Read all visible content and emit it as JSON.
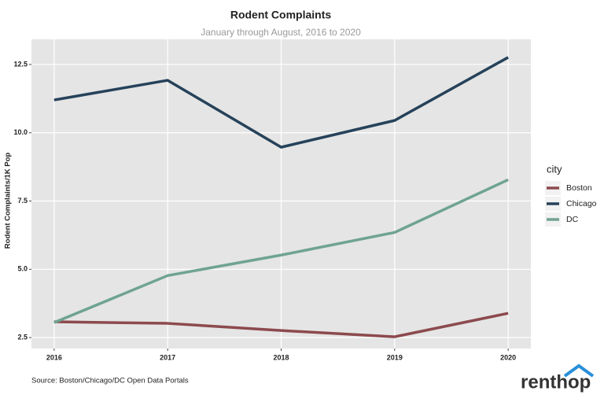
{
  "chart_data": {
    "type": "line",
    "title": "Rodent Complaints",
    "subtitle": "January through August, 2016 to 2020",
    "y_label": "Rodent Complaints/1K Pop",
    "x": [
      2016,
      2017,
      2018,
      2019,
      2020
    ],
    "xlim": [
      2015.8,
      2020.2
    ],
    "xticks": [
      2016,
      2017,
      2018,
      2019,
      2020
    ],
    "ylim": [
      2.1,
      13.42
    ],
    "yticks": [
      2.5,
      {
        "value": 5,
        "label": "5.0"
      },
      7.5,
      {
        "value": 10,
        "label": "10.0"
      },
      12.5
    ],
    "grid": true,
    "legend_title": "city",
    "legend_position": "right",
    "series": [
      {
        "name": "Boston",
        "color": "#8c4a4e",
        "values": [
          3.08,
          3.02,
          2.76,
          2.53,
          3.39
        ]
      },
      {
        "name": "Chicago",
        "color": "#26425a",
        "values": [
          11.2,
          11.92,
          9.47,
          10.45,
          12.76
        ]
      },
      {
        "name": "DC",
        "color": "#6fa392",
        "values": [
          3.05,
          4.77,
          5.52,
          6.35,
          8.28
        ]
      }
    ],
    "source": "Source: Boston/Chicago/DC Open Data Portals",
    "brand": "renthop"
  }
}
